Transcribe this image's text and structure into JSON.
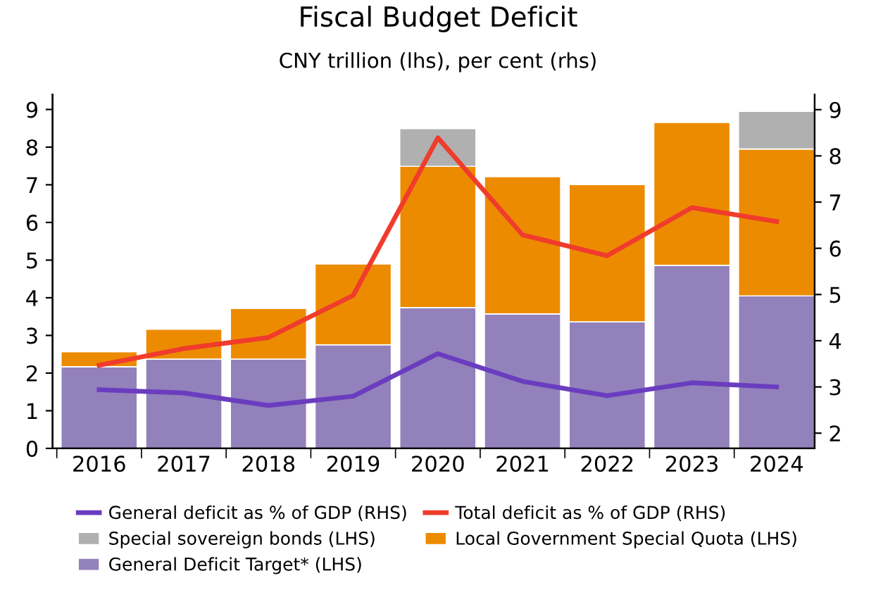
{
  "chart_data": {
    "type": "bar",
    "title": "Fiscal Budget Deficit",
    "subtitle": "CNY trillion (lhs), per cent (rhs)",
    "categories": [
      "2016",
      "2017",
      "2018",
      "2019",
      "2020",
      "2021",
      "2022",
      "2023",
      "2024"
    ],
    "stacked": true,
    "series": [
      {
        "name": "General deficit as % of GDP (RHS)",
        "type": "line",
        "axis": "y2",
        "color": "#6a3dbf",
        "values": [
          2.94,
          2.87,
          2.6,
          2.8,
          3.72,
          3.12,
          2.81,
          3.09,
          3.0
        ]
      },
      {
        "name": "Total deficit as % of GDP (RHS)",
        "type": "line",
        "axis": "y2",
        "color": "#f03c2c",
        "values": [
          3.47,
          3.83,
          4.07,
          4.98,
          8.39,
          6.29,
          5.84,
          6.88,
          6.58
        ]
      },
      {
        "name": "Special sovereign bonds (LHS)",
        "color": "#b0b0b0",
        "values": [
          null,
          null,
          null,
          null,
          1.0,
          null,
          null,
          null,
          1.0
        ]
      },
      {
        "name": "Local Government Special Quota (LHS)",
        "color": "#ec8b00",
        "values": [
          0.4,
          0.8,
          1.35,
          2.15,
          3.75,
          3.65,
          3.65,
          3.8,
          3.9
        ]
      },
      {
        "name": "General Deficit Target* (LHS)",
        "color": "#9381bb",
        "values": [
          2.17,
          2.37,
          2.37,
          2.75,
          3.74,
          3.57,
          3.36,
          4.86,
          4.05
        ]
      }
    ],
    "ylim": [
      0,
      9.4
    ],
    "yticks": [
      0,
      1,
      2,
      3,
      4,
      5,
      6,
      7,
      8,
      9
    ],
    "y2lim": [
      1.67,
      9.33
    ],
    "y2ticks": [
      2,
      3,
      4,
      5,
      6,
      7,
      8,
      9
    ],
    "grid": false,
    "legend": "bottom"
  }
}
